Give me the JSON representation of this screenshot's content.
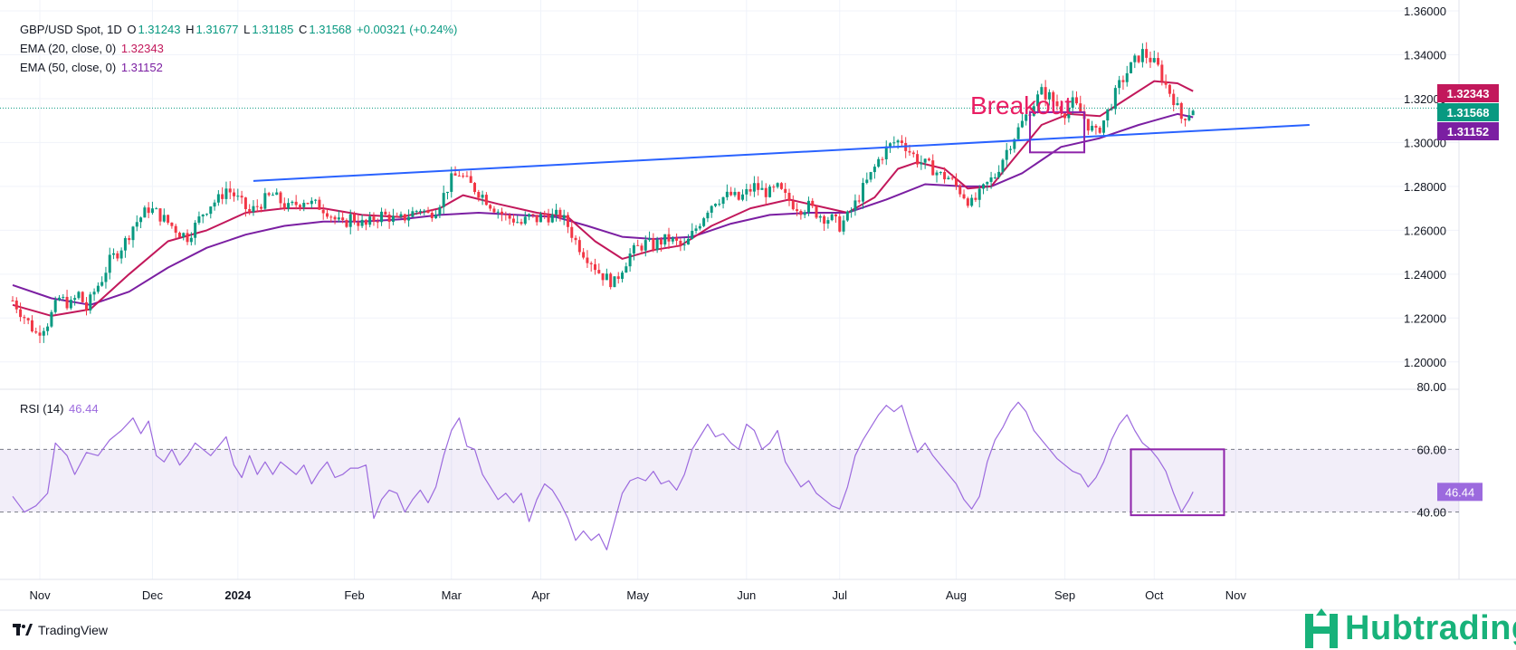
{
  "legend": {
    "symbol": "GBP/USD Spot, 1D",
    "o_label": "O",
    "o_value": "1.31243",
    "h_label": "H",
    "h_value": "1.31677",
    "l_label": "L",
    "l_value": "1.31185",
    "c_label": "C",
    "c_value": "1.31568",
    "change": "+0.00321 (+0.24%)",
    "ema20_label": "EMA (20, close, 0)",
    "ema20_value": "1.32343",
    "ema50_label": "EMA (50, close, 0)",
    "ema50_value": "1.31152",
    "rsi_label": "RSI (14)",
    "rsi_value": "46.44"
  },
  "annotation": {
    "breakout": "Breakout"
  },
  "branding": {
    "tradingview": "TradingView",
    "hubtrading": "Hubtrading"
  },
  "colors": {
    "up": "#089981",
    "down": "#f23645",
    "ema20": "#c2185b",
    "ema50": "#7b1fa2",
    "trendline": "#2962ff",
    "rsi": "#9c6ade",
    "box": "#8e24aa",
    "brand": "#18b27a"
  },
  "chart_data": {
    "type": "candlestick",
    "title": "GBP/USD Spot, 1D",
    "x_tick_labels": [
      "Nov",
      "Dec",
      "2024",
      "Feb",
      "Mar",
      "Apr",
      "May",
      "Jun",
      "Jul",
      "Aug",
      "Sep",
      "Oct",
      "Nov"
    ],
    "price_axis": {
      "ylim": [
        1.19,
        1.36
      ],
      "ticks": [
        "1.20000",
        "1.22000",
        "1.24000",
        "1.26000",
        "1.28000",
        "1.30000",
        "1.32000",
        "1.34000",
        "1.36000"
      ]
    },
    "rsi_axis": {
      "ylim": [
        20,
        80
      ],
      "ticks": [
        "40.00",
        "60.00",
        "80.00"
      ]
    },
    "price_path": [
      [
        0,
        1.228
      ],
      [
        6,
        1.213
      ],
      [
        9,
        1.218
      ],
      [
        12,
        1.229
      ],
      [
        15,
        1.226
      ],
      [
        17,
        1.231
      ],
      [
        19,
        1.224
      ],
      [
        21,
        1.232
      ],
      [
        23,
        1.238
      ],
      [
        25,
        1.246
      ],
      [
        27,
        1.25
      ],
      [
        29,
        1.255
      ],
      [
        31,
        1.262
      ],
      [
        33,
        1.266
      ],
      [
        35,
        1.27
      ],
      [
        37,
        1.268
      ],
      [
        39,
        1.265
      ],
      [
        41,
        1.262
      ],
      [
        43,
        1.259
      ],
      [
        45,
        1.257
      ],
      [
        47,
        1.262
      ],
      [
        49,
        1.268
      ],
      [
        51,
        1.272
      ],
      [
        53,
        1.274
      ],
      [
        55,
        1.279
      ],
      [
        57,
        1.276
      ],
      [
        59,
        1.272
      ],
      [
        61,
        1.268
      ],
      [
        63,
        1.271
      ],
      [
        65,
        1.274
      ],
      [
        67,
        1.276
      ],
      [
        69,
        1.273
      ],
      [
        71,
        1.27
      ],
      [
        73,
        1.272
      ],
      [
        75,
        1.274
      ],
      [
        77,
        1.272
      ],
      [
        79,
        1.271
      ],
      [
        81,
        1.269
      ],
      [
        83,
        1.265
      ],
      [
        85,
        1.262
      ],
      [
        87,
        1.266
      ],
      [
        89,
        1.264
      ],
      [
        91,
        1.262
      ],
      [
        93,
        1.265
      ],
      [
        95,
        1.267
      ],
      [
        97,
        1.266
      ],
      [
        99,
        1.264
      ],
      [
        101,
        1.266
      ],
      [
        103,
        1.268
      ],
      [
        105,
        1.27
      ],
      [
        107,
        1.267
      ],
      [
        109,
        1.27
      ],
      [
        111,
        1.276
      ],
      [
        113,
        1.283
      ],
      [
        115,
        1.286
      ],
      [
        117,
        1.282
      ],
      [
        119,
        1.279
      ],
      [
        121,
        1.276
      ],
      [
        123,
        1.272
      ],
      [
        125,
        1.269
      ],
      [
        127,
        1.266
      ],
      [
        129,
        1.265
      ],
      [
        131,
        1.263
      ],
      [
        133,
        1.266
      ],
      [
        135,
        1.265
      ],
      [
        137,
        1.267
      ],
      [
        139,
        1.266
      ],
      [
        141,
        1.267
      ],
      [
        143,
        1.262
      ],
      [
        145,
        1.255
      ],
      [
        147,
        1.25
      ],
      [
        149,
        1.246
      ],
      [
        151,
        1.241
      ],
      [
        153,
        1.238
      ],
      [
        155,
        1.236
      ],
      [
        157,
        1.243
      ],
      [
        159,
        1.249
      ],
      [
        161,
        1.252
      ],
      [
        163,
        1.254
      ],
      [
        165,
        1.253
      ],
      [
        167,
        1.255
      ],
      [
        169,
        1.256
      ],
      [
        171,
        1.254
      ],
      [
        173,
        1.252
      ],
      [
        175,
        1.258
      ],
      [
        177,
        1.264
      ],
      [
        179,
        1.27
      ],
      [
        181,
        1.274
      ],
      [
        183,
        1.275
      ],
      [
        185,
        1.276
      ],
      [
        187,
        1.274
      ],
      [
        189,
        1.277
      ],
      [
        191,
        1.28
      ],
      [
        193,
        1.278
      ],
      [
        195,
        1.277
      ],
      [
        197,
        1.279
      ],
      [
        199,
        1.275
      ],
      [
        201,
        1.272
      ],
      [
        203,
        1.27
      ],
      [
        205,
        1.271
      ],
      [
        207,
        1.268
      ],
      [
        209,
        1.266
      ],
      [
        211,
        1.265
      ],
      [
        213,
        1.262
      ],
      [
        215,
        1.266
      ],
      [
        217,
        1.272
      ],
      [
        219,
        1.279
      ],
      [
        221,
        1.285
      ],
      [
        223,
        1.292
      ],
      [
        225,
        1.297
      ],
      [
        227,
        1.3
      ],
      [
        229,
        1.301
      ],
      [
        231,
        1.296
      ],
      [
        233,
        1.292
      ],
      [
        235,
        1.29
      ],
      [
        237,
        1.288
      ],
      [
        239,
        1.285
      ],
      [
        241,
        1.284
      ],
      [
        243,
        1.28
      ],
      [
        245,
        1.276
      ],
      [
        247,
        1.272
      ],
      [
        249,
        1.276
      ],
      [
        251,
        1.281
      ],
      [
        253,
        1.285
      ],
      [
        255,
        1.293
      ],
      [
        257,
        1.3
      ],
      [
        259,
        1.306
      ],
      [
        261,
        1.312
      ],
      [
        263,
        1.318
      ],
      [
        265,
        1.323
      ],
      [
        267,
        1.321
      ],
      [
        269,
        1.317
      ],
      [
        271,
        1.314
      ],
      [
        273,
        1.318
      ],
      [
        275,
        1.314
      ],
      [
        277,
        1.308
      ],
      [
        279,
        1.304
      ],
      [
        281,
        1.31
      ],
      [
        283,
        1.318
      ],
      [
        285,
        1.326
      ],
      [
        287,
        1.332
      ],
      [
        289,
        1.337
      ],
      [
        291,
        1.341
      ],
      [
        293,
        1.338
      ],
      [
        295,
        1.334
      ],
      [
        297,
        1.326
      ],
      [
        299,
        1.32
      ],
      [
        301,
        1.311
      ],
      [
        303,
        1.314
      ],
      [
        304,
        1.3157
      ]
    ],
    "ema20_points": [
      [
        0,
        1.226
      ],
      [
        10,
        1.221
      ],
      [
        20,
        1.224
      ],
      [
        30,
        1.24
      ],
      [
        40,
        1.255
      ],
      [
        50,
        1.26
      ],
      [
        60,
        1.268
      ],
      [
        70,
        1.27
      ],
      [
        80,
        1.27
      ],
      [
        90,
        1.267
      ],
      [
        100,
        1.266
      ],
      [
        110,
        1.27
      ],
      [
        116,
        1.276
      ],
      [
        125,
        1.272
      ],
      [
        135,
        1.268
      ],
      [
        143,
        1.266
      ],
      [
        150,
        1.255
      ],
      [
        157,
        1.247
      ],
      [
        165,
        1.251
      ],
      [
        172,
        1.253
      ],
      [
        180,
        1.262
      ],
      [
        190,
        1.27
      ],
      [
        200,
        1.274
      ],
      [
        210,
        1.27
      ],
      [
        215,
        1.268
      ],
      [
        222,
        1.275
      ],
      [
        228,
        1.288
      ],
      [
        233,
        1.291
      ],
      [
        240,
        1.288
      ],
      [
        246,
        1.279
      ],
      [
        252,
        1.28
      ],
      [
        258,
        1.293
      ],
      [
        265,
        1.308
      ],
      [
        272,
        1.313
      ],
      [
        280,
        1.312
      ],
      [
        287,
        1.32
      ],
      [
        294,
        1.328
      ],
      [
        300,
        1.327
      ],
      [
        304,
        1.3234
      ]
    ],
    "ema50_points": [
      [
        0,
        1.235
      ],
      [
        10,
        1.229
      ],
      [
        20,
        1.226
      ],
      [
        30,
        1.232
      ],
      [
        40,
        1.243
      ],
      [
        50,
        1.252
      ],
      [
        60,
        1.258
      ],
      [
        70,
        1.262
      ],
      [
        80,
        1.264
      ],
      [
        90,
        1.264
      ],
      [
        100,
        1.265
      ],
      [
        110,
        1.267
      ],
      [
        120,
        1.268
      ],
      [
        130,
        1.267
      ],
      [
        140,
        1.266
      ],
      [
        148,
        1.262
      ],
      [
        157,
        1.257
      ],
      [
        165,
        1.256
      ],
      [
        175,
        1.257
      ],
      [
        185,
        1.263
      ],
      [
        195,
        1.267
      ],
      [
        205,
        1.268
      ],
      [
        215,
        1.268
      ],
      [
        225,
        1.274
      ],
      [
        235,
        1.281
      ],
      [
        245,
        1.28
      ],
      [
        252,
        1.28
      ],
      [
        260,
        1.286
      ],
      [
        270,
        1.298
      ],
      [
        280,
        1.302
      ],
      [
        290,
        1.308
      ],
      [
        300,
        1.313
      ],
      [
        304,
        1.3115
      ]
    ],
    "trendline": [
      [
        62,
        1.2825
      ],
      [
        334,
        1.308
      ]
    ],
    "breakout_box": {
      "x_range": [
        262,
        276
      ],
      "y_range": [
        1.2955,
        1.3138
      ]
    },
    "rsi_points": [
      [
        0,
        45
      ],
      [
        3,
        40
      ],
      [
        6,
        42
      ],
      [
        9,
        46
      ],
      [
        11,
        62
      ],
      [
        14,
        58
      ],
      [
        16,
        52
      ],
      [
        19,
        59
      ],
      [
        22,
        58
      ],
      [
        25,
        63
      ],
      [
        28,
        66
      ],
      [
        31,
        70
      ],
      [
        33,
        65
      ],
      [
        35,
        69
      ],
      [
        37,
        58
      ],
      [
        39,
        56
      ],
      [
        41,
        60
      ],
      [
        43,
        55
      ],
      [
        45,
        58
      ],
      [
        47,
        62
      ],
      [
        49,
        60
      ],
      [
        51,
        58
      ],
      [
        53,
        61
      ],
      [
        55,
        64
      ],
      [
        57,
        55
      ],
      [
        59,
        51
      ],
      [
        61,
        58
      ],
      [
        63,
        52
      ],
      [
        65,
        56
      ],
      [
        67,
        52
      ],
      [
        69,
        56
      ],
      [
        71,
        54
      ],
      [
        73,
        52
      ],
      [
        75,
        55
      ],
      [
        77,
        49
      ],
      [
        79,
        53
      ],
      [
        81,
        56
      ],
      [
        83,
        51
      ],
      [
        85,
        52
      ],
      [
        87,
        54
      ],
      [
        89,
        54
      ],
      [
        91,
        55
      ],
      [
        93,
        38
      ],
      [
        95,
        44
      ],
      [
        97,
        47
      ],
      [
        99,
        46
      ],
      [
        101,
        40
      ],
      [
        103,
        44
      ],
      [
        105,
        47
      ],
      [
        107,
        43
      ],
      [
        109,
        48
      ],
      [
        111,
        58
      ],
      [
        113,
        66
      ],
      [
        115,
        70
      ],
      [
        117,
        61
      ],
      [
        119,
        60
      ],
      [
        121,
        52
      ],
      [
        123,
        48
      ],
      [
        125,
        44
      ],
      [
        127,
        46
      ],
      [
        129,
        43
      ],
      [
        131,
        46
      ],
      [
        133,
        37
      ],
      [
        135,
        44
      ],
      [
        137,
        49
      ],
      [
        139,
        47
      ],
      [
        141,
        43
      ],
      [
        143,
        38
      ],
      [
        145,
        31
      ],
      [
        147,
        34
      ],
      [
        149,
        31
      ],
      [
        151,
        33
      ],
      [
        153,
        28
      ],
      [
        155,
        37
      ],
      [
        157,
        46
      ],
      [
        159,
        50
      ],
      [
        161,
        51
      ],
      [
        163,
        50
      ],
      [
        165,
        53
      ],
      [
        167,
        49
      ],
      [
        169,
        50
      ],
      [
        171,
        47
      ],
      [
        173,
        52
      ],
      [
        175,
        60
      ],
      [
        177,
        64
      ],
      [
        179,
        68
      ],
      [
        181,
        64
      ],
      [
        183,
        65
      ],
      [
        185,
        62
      ],
      [
        187,
        60
      ],
      [
        189,
        68
      ],
      [
        191,
        66
      ],
      [
        193,
        60
      ],
      [
        195,
        62
      ],
      [
        197,
        66
      ],
      [
        199,
        56
      ],
      [
        201,
        52
      ],
      [
        203,
        48
      ],
      [
        205,
        50
      ],
      [
        207,
        46
      ],
      [
        209,
        44
      ],
      [
        211,
        42
      ],
      [
        213,
        41
      ],
      [
        215,
        48
      ],
      [
        217,
        58
      ],
      [
        219,
        63
      ],
      [
        221,
        67
      ],
      [
        223,
        71
      ],
      [
        225,
        74
      ],
      [
        227,
        72
      ],
      [
        229,
        74
      ],
      [
        231,
        66
      ],
      [
        233,
        59
      ],
      [
        235,
        62
      ],
      [
        237,
        58
      ],
      [
        239,
        55
      ],
      [
        241,
        52
      ],
      [
        243,
        49
      ],
      [
        245,
        44
      ],
      [
        247,
        41
      ],
      [
        249,
        45
      ],
      [
        251,
        56
      ],
      [
        253,
        63
      ],
      [
        255,
        67
      ],
      [
        257,
        72
      ],
      [
        259,
        75
      ],
      [
        261,
        72
      ],
      [
        263,
        66
      ],
      [
        265,
        63
      ],
      [
        267,
        60
      ],
      [
        269,
        57
      ],
      [
        271,
        55
      ],
      [
        273,
        53
      ],
      [
        275,
        52
      ],
      [
        277,
        48
      ],
      [
        279,
        51
      ],
      [
        281,
        56
      ],
      [
        283,
        63
      ],
      [
        285,
        68
      ],
      [
        287,
        71
      ],
      [
        289,
        66
      ],
      [
        291,
        62
      ],
      [
        293,
        60
      ],
      [
        295,
        57
      ],
      [
        297,
        53
      ],
      [
        299,
        46
      ],
      [
        301,
        40
      ],
      [
        303,
        44
      ],
      [
        304,
        46.44
      ]
    ],
    "rsi_box": {
      "x_range": [
        288,
        312
      ],
      "y_range": [
        39,
        60
      ]
    },
    "rsi_band": [
      40,
      60
    ],
    "last_price_line": 1.31568,
    "price_tags": [
      {
        "value": 1.32343,
        "text": "1.32343",
        "color": "#c2185b"
      },
      {
        "value": 1.31568,
        "text": "1.31568",
        "color": "#089981"
      },
      {
        "value": 1.31152,
        "text": "1.31152",
        "color": "#7b1fa2"
      }
    ],
    "rsi_tag": {
      "value": 46.44,
      "text": "46.44",
      "color": "#9c6ade"
    }
  }
}
